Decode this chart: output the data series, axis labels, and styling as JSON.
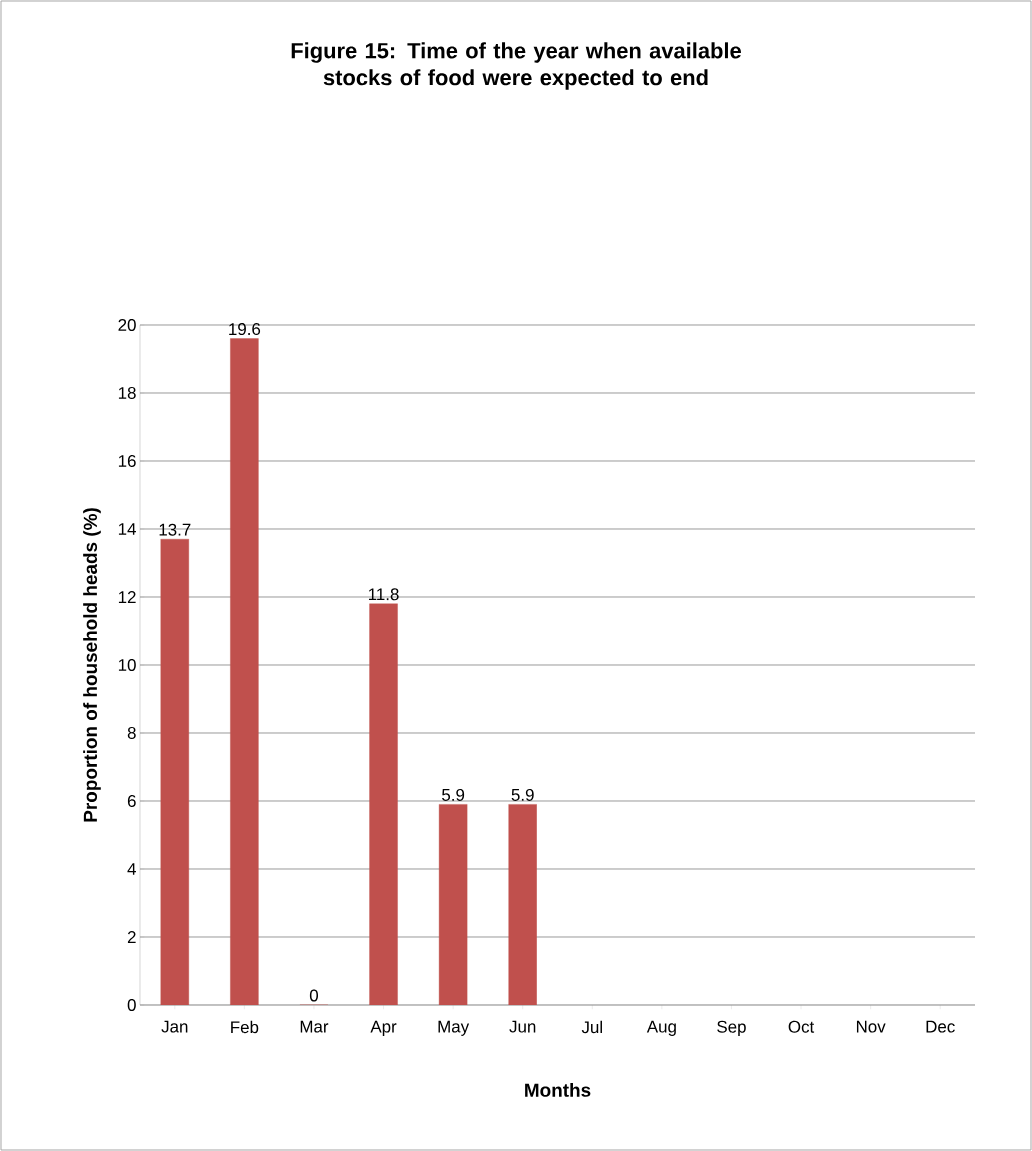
{
  "chart_data": {
    "type": "bar",
    "title": "Figure 15: Time of the year when available stocks of food were expected to end",
    "xlabel": "Months",
    "ylabel": "Proportion of household heads (%)",
    "categories": [
      "Jan",
      "Feb",
      "Mar",
      "Apr",
      "May",
      "Jun",
      "Jul",
      "Aug",
      "Sep",
      "Oct",
      "Nov",
      "Dec"
    ],
    "values": [
      13.7,
      19.6,
      0,
      11.8,
      5.9,
      5.9,
      null,
      null,
      null,
      null,
      null,
      null
    ],
    "color": "#c0504d",
    "ylim": [
      0,
      20
    ],
    "yticks": [
      0,
      2,
      4,
      6,
      8,
      10,
      12,
      14,
      16,
      18,
      20
    ],
    "grid": "y",
    "data_labels": true
  }
}
